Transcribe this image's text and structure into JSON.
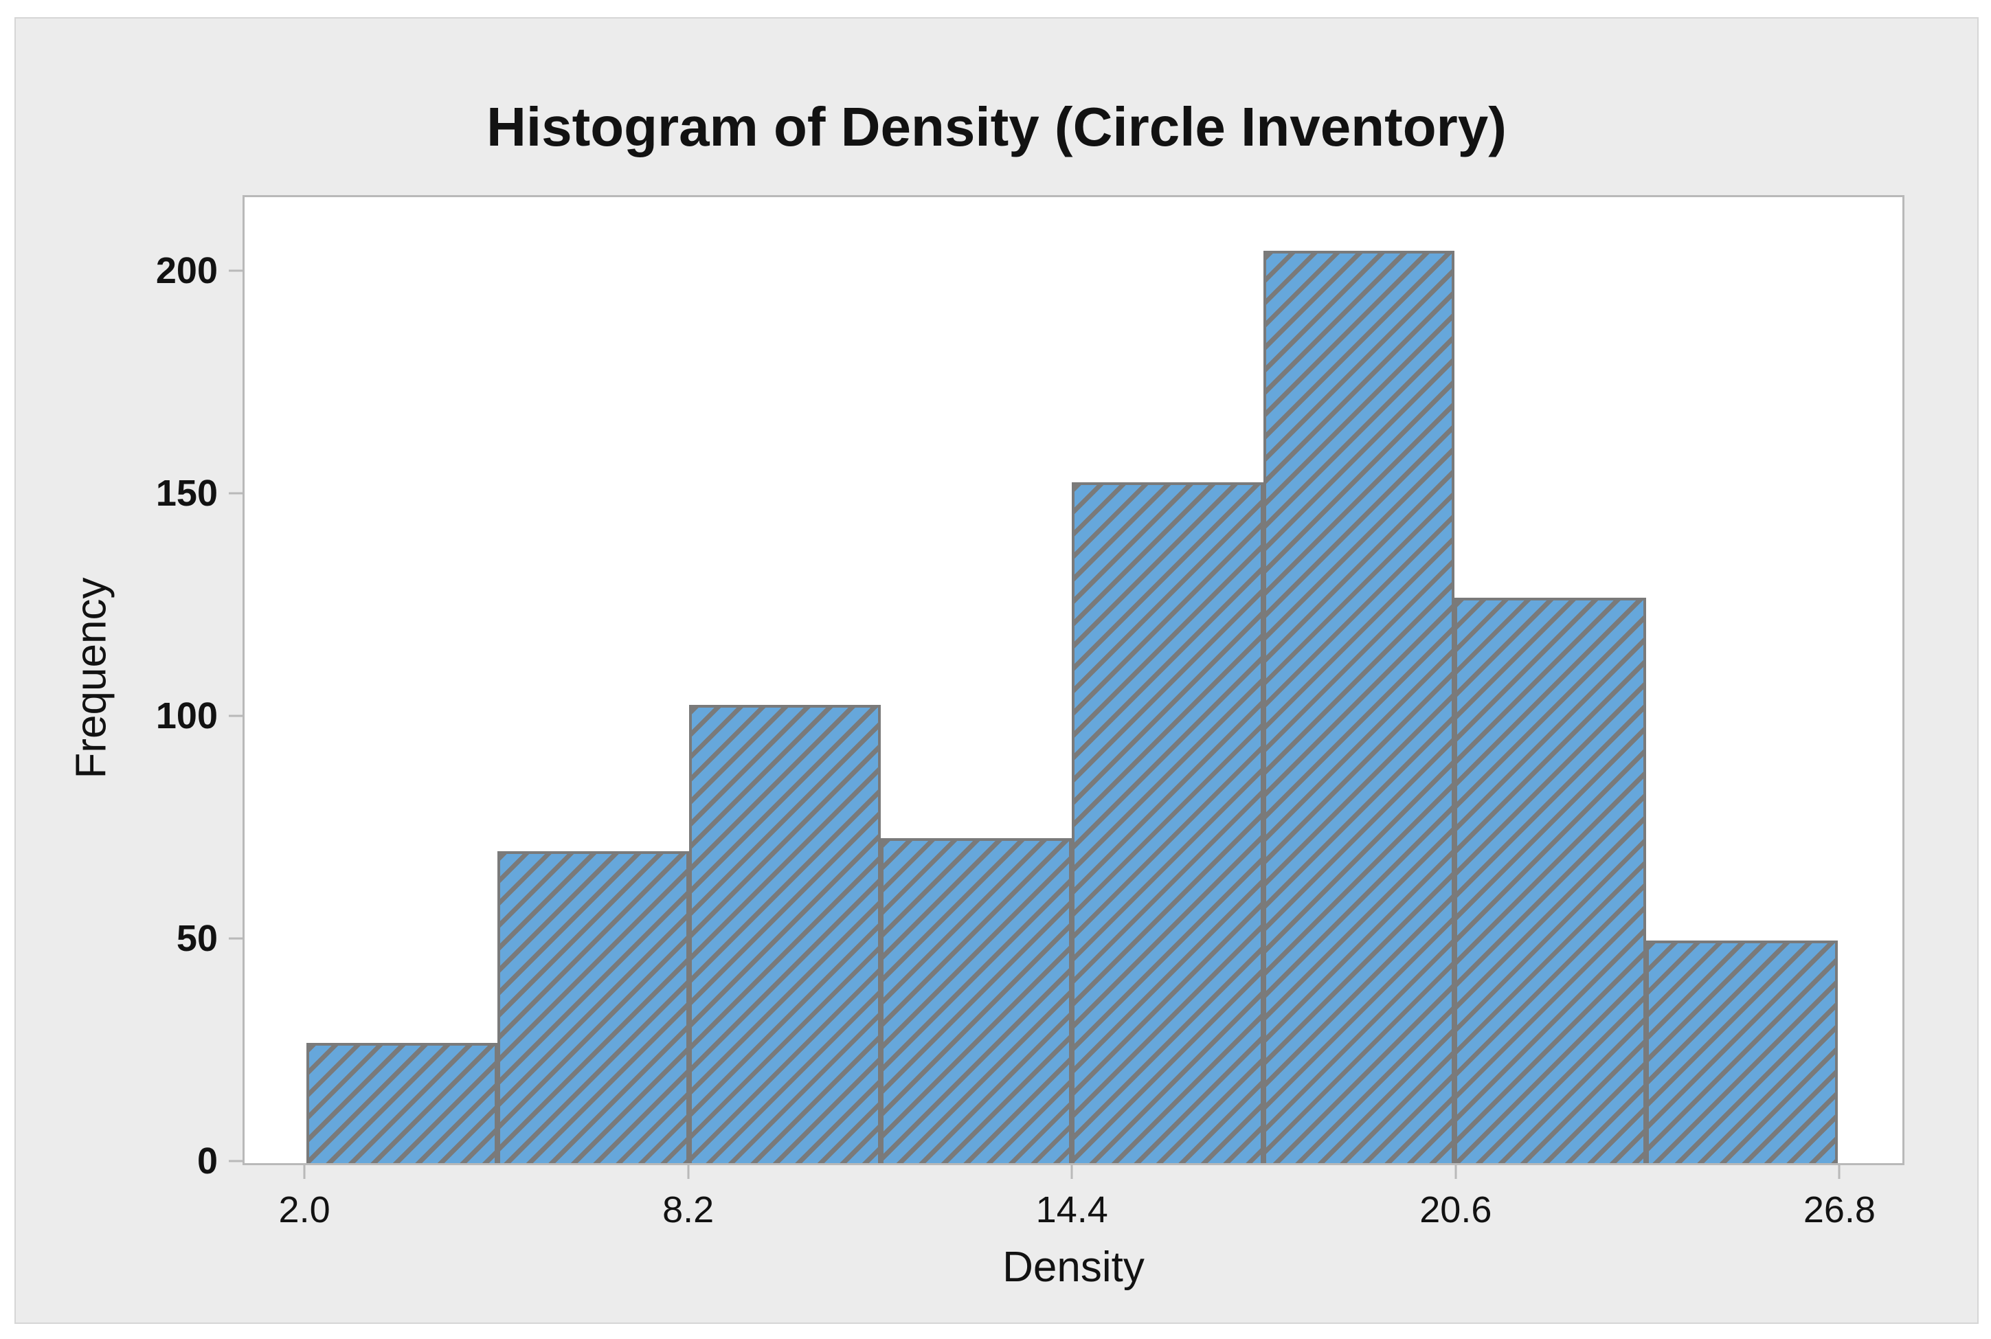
{
  "window": {
    "background_color": "#FFFFFF",
    "panel_color": "#ECECEC",
    "panel_border_color": "#D6D6D6"
  },
  "chart_data": {
    "type": "bar",
    "subtype": "histogram",
    "title": "Histogram of Density (Circle Inventory)",
    "xlabel": "Density",
    "ylabel": "Frequency",
    "bin_edges": [
      2.0,
      5.1,
      8.2,
      11.3,
      14.4,
      17.5,
      20.6,
      23.7,
      26.8
    ],
    "bin_width": 3.1,
    "values": [
      27,
      70,
      103,
      73,
      153,
      205,
      127,
      50
    ],
    "x_ticks": [
      {
        "value": 2.0,
        "label": "2.0"
      },
      {
        "value": 8.2,
        "label": "8.2"
      },
      {
        "value": 14.4,
        "label": "14.4"
      },
      {
        "value": 20.6,
        "label": "20.6"
      },
      {
        "value": 26.8,
        "label": "26.8"
      }
    ],
    "y_ticks": [
      {
        "value": 0,
        "label": "0"
      },
      {
        "value": 50,
        "label": "50"
      },
      {
        "value": 100,
        "label": "100"
      },
      {
        "value": 150,
        "label": "150"
      },
      {
        "value": 200,
        "label": "200"
      }
    ],
    "xlim": [
      1.0,
      27.85
    ],
    "ylim": [
      0,
      217
    ],
    "grid": false,
    "legend": "none",
    "bar_fill_color": "#66A7DB",
    "bar_hatch_color": "#7A7A7A",
    "bar_hatch_style": "diagonal-forward-slash",
    "axis_line_color": "#B9B9B9",
    "text_color": "#121212",
    "plot_background_color": "#FFFFFF"
  }
}
